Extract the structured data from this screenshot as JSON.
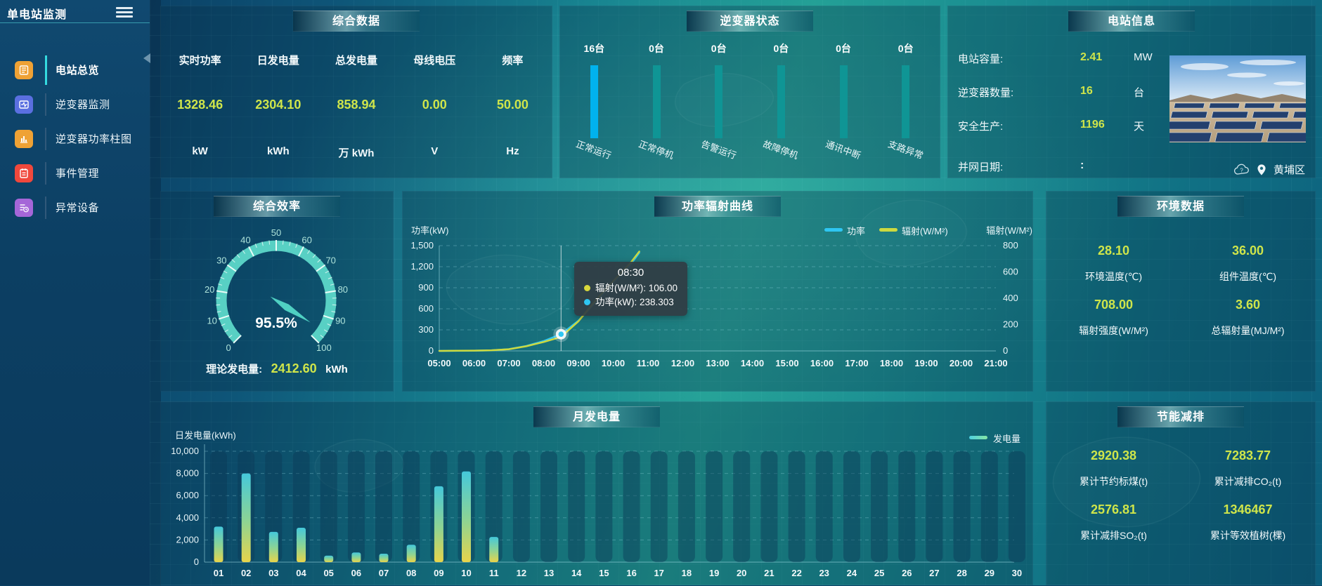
{
  "sidebar": {
    "app_title": "单电站监测",
    "items": [
      {
        "key": "overview",
        "label": "电站总览",
        "icon": "overview-icon",
        "color": "#efa235",
        "active": true
      },
      {
        "key": "inverter-monitor",
        "label": "逆变器监测",
        "icon": "inverter-monitor-icon",
        "color": "#5a6fe0",
        "active": false
      },
      {
        "key": "inverter-power-bars",
        "label": "逆变器功率柱图",
        "icon": "inverter-power-bars-icon",
        "color": "#efa235",
        "active": false
      },
      {
        "key": "event-management",
        "label": "事件管理",
        "icon": "event-management-icon",
        "color": "#f0483c",
        "active": false
      },
      {
        "key": "abnormal-devices",
        "label": "异常设备",
        "icon": "abnormal-device-icon",
        "color": "#a566d8",
        "active": false
      }
    ]
  },
  "panels": {
    "summary": {
      "title": "综合数据",
      "metrics": [
        {
          "label": "实时功率",
          "value": "1328.46",
          "unit": "kW"
        },
        {
          "label": "日发电量",
          "value": "2304.10",
          "unit": "kWh"
        },
        {
          "label": "总发电量",
          "value": "858.94",
          "unit": "万 kWh"
        },
        {
          "label": "母线电压",
          "value": "0.00",
          "unit": "V"
        },
        {
          "label": "频率",
          "value": "50.00",
          "unit": "Hz"
        }
      ]
    },
    "inverter_status": {
      "title": "逆变器状态",
      "bars": [
        {
          "count": "16台",
          "label": "正常运行",
          "highlight": true
        },
        {
          "count": "0台",
          "label": "正常停机",
          "highlight": false
        },
        {
          "count": "0台",
          "label": "告警运行",
          "highlight": false
        },
        {
          "count": "0台",
          "label": "故障停机",
          "highlight": false
        },
        {
          "count": "0台",
          "label": "通讯中断",
          "highlight": false
        },
        {
          "count": "0台",
          "label": "支路异常",
          "highlight": false
        }
      ]
    },
    "station_info": {
      "title": "电站信息",
      "rows": [
        {
          "label": "电站容量:",
          "value": "2.41",
          "unit": "MW",
          "yellow": true
        },
        {
          "label": "逆变器数量:",
          "value": "16",
          "unit": "台",
          "yellow": true
        },
        {
          "label": "安全生产:",
          "value": "1196",
          "unit": "天",
          "yellow": true
        },
        {
          "label": "并网日期:",
          "value": ":",
          "unit": "",
          "yellow": false
        }
      ],
      "location": "黄埔区"
    },
    "efficiency": {
      "title": "综合效率",
      "footer_label": "理论发电量:",
      "footer_value": "2412.60",
      "footer_unit": "kWh"
    },
    "power_curve": {
      "title": "功率辐射曲线"
    },
    "environment": {
      "title": "环境数据",
      "metrics": [
        {
          "value": "28.10",
          "label": "环境温度(℃)"
        },
        {
          "value": "36.00",
          "label": "组件温度(℃)"
        },
        {
          "value": "708.00",
          "label": "辐射强度(W/M²)"
        },
        {
          "value": "3.60",
          "label": "总辐射量(MJ/M²)"
        }
      ]
    },
    "monthly": {
      "title": "月发电量"
    },
    "saving": {
      "title": "节能减排",
      "metrics": [
        {
          "value": "2920.38",
          "label": "累计节约标煤(t)"
        },
        {
          "value": "7283.77",
          "label": "累计减排CO₂(t)"
        },
        {
          "value": "2576.81",
          "label": "累计减排SO₂(t)"
        },
        {
          "value": "1346467",
          "label": "累计等效植树(棵)"
        }
      ]
    }
  },
  "chart_data": [
    {
      "type": "gauge",
      "title": "综合效率",
      "value": 95.5,
      "display": "95.5%",
      "min": 0,
      "max": 100,
      "major_ticks": [
        0,
        10,
        20,
        30,
        40,
        50,
        60,
        70,
        80,
        90,
        100
      ],
      "arc_color": "#58d0c4",
      "needle_color": "#4fd0c2",
      "label_color": "#aee3da"
    },
    {
      "type": "line",
      "title": "功率辐射曲线",
      "ylabel_left": "功率(kW)",
      "ylabel_right": "辐射(W/M²)",
      "ylim_left": [
        0,
        1500
      ],
      "ylim_right": [
        0,
        800
      ],
      "left_ticks": [
        [
          0,
          "0"
        ],
        [
          300,
          "300"
        ],
        [
          600,
          "600"
        ],
        [
          900,
          "900"
        ],
        [
          1200,
          "1,200"
        ],
        [
          1500,
          "1,500"
        ]
      ],
      "right_ticks": [
        [
          0,
          "0"
        ],
        [
          200,
          "200"
        ],
        [
          400,
          "400"
        ],
        [
          600,
          "600"
        ],
        [
          800,
          "800"
        ]
      ],
      "x_ticks": [
        [
          5,
          "05:00"
        ],
        [
          6,
          "06:00"
        ],
        [
          7,
          "07:00"
        ],
        [
          8,
          "08:00"
        ],
        [
          9,
          "09:00"
        ],
        [
          10,
          "10:00"
        ],
        [
          11,
          "11:00"
        ],
        [
          12,
          "12:00"
        ],
        [
          13,
          "13:00"
        ],
        [
          14,
          "14:00"
        ],
        [
          15,
          "15:00"
        ],
        [
          16,
          "16:00"
        ],
        [
          17,
          "17:00"
        ],
        [
          18,
          "18:00"
        ],
        [
          19,
          "19:00"
        ],
        [
          20,
          "20:00"
        ],
        [
          21,
          "21:00"
        ]
      ],
      "legend": [
        {
          "name": "功率",
          "color": "#2ec6f2"
        },
        {
          "name": "辐射(W/M²)",
          "color": "#cdd93f"
        }
      ],
      "series": [
        {
          "name": "功率",
          "axis": "left",
          "color": "#2ec6f2",
          "x": [
            5,
            5.5,
            6,
            6.5,
            7,
            7.5,
            8,
            8.5,
            9,
            9.5,
            10,
            10.5,
            10.75
          ],
          "values": [
            0,
            1,
            3,
            8,
            25,
            70,
            140,
            238.3,
            430,
            700,
            980,
            1230,
            1400
          ]
        },
        {
          "name": "辐射(W/M²)",
          "axis": "right",
          "color": "#cdd93f",
          "x": [
            5,
            5.5,
            6,
            6.5,
            7,
            7.5,
            8,
            8.5,
            9,
            9.5,
            10,
            10.5,
            10.75
          ],
          "values": [
            0,
            1,
            2,
            5,
            13,
            35,
            68,
            106,
            225,
            385,
            530,
            670,
            755
          ]
        }
      ],
      "tooltip": {
        "time": "08:30",
        "x": 8.5,
        "marker_value": 238.303,
        "rows": [
          {
            "color": "#d8d83c",
            "text": "辐射(W/M²): 106.00"
          },
          {
            "color": "#2ec6f2",
            "text": "功率(kW): 238.303"
          }
        ]
      }
    },
    {
      "type": "bar",
      "title": "月发电量",
      "ylabel": "日发电量(kWh)",
      "ylim": [
        0,
        10000
      ],
      "y_ticks": [
        [
          0,
          "0"
        ],
        [
          2000,
          "2,000"
        ],
        [
          4000,
          "4,000"
        ],
        [
          6000,
          "6,000"
        ],
        [
          8000,
          "8,000"
        ],
        [
          10000,
          "10,000"
        ]
      ],
      "legend": [
        {
          "name": "发电量"
        }
      ],
      "categories": [
        "01",
        "02",
        "03",
        "04",
        "05",
        "06",
        "07",
        "08",
        "09",
        "10",
        "11",
        "12",
        "13",
        "14",
        "15",
        "16",
        "17",
        "18",
        "19",
        "20",
        "21",
        "22",
        "23",
        "24",
        "25",
        "26",
        "27",
        "28",
        "29",
        "30"
      ],
      "values": [
        3200,
        8000,
        2730,
        3100,
        590,
        870,
        760,
        1570,
        6840,
        8180,
        2270,
        0,
        0,
        0,
        0,
        0,
        0,
        0,
        0,
        0,
        0,
        0,
        0,
        0,
        0,
        0,
        0,
        0,
        0,
        0
      ]
    }
  ]
}
